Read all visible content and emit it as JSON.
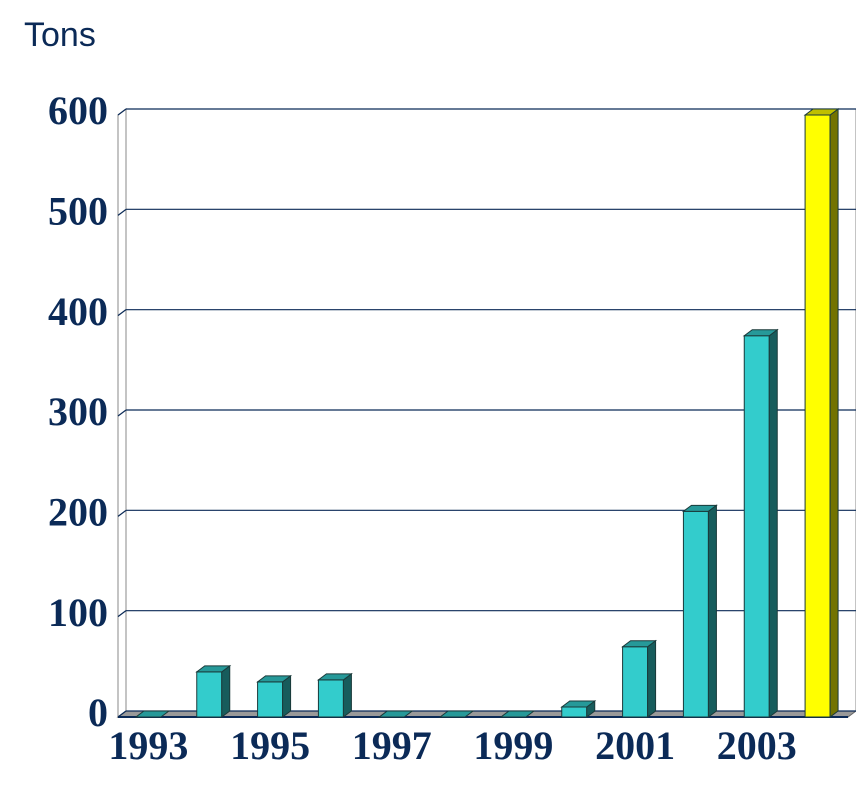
{
  "chart_data": {
    "type": "bar3d",
    "y_axis_label": "Tons",
    "categories": [
      "1993",
      null,
      "1995",
      null,
      "1997",
      null,
      "1999",
      null,
      "2001",
      null,
      "2003",
      null
    ],
    "values": [
      0,
      45,
      35,
      37,
      0,
      0,
      0,
      10,
      70,
      205,
      380,
      600
    ],
    "colors": [
      "#33cccc",
      "#33cccc",
      "#33cccc",
      "#33cccc",
      "#33cccc",
      "#33cccc",
      "#33cccc",
      "#33cccc",
      "#33cccc",
      "#33cccc",
      "#33cccc",
      "#ffff00"
    ],
    "ylim": [
      0,
      600
    ],
    "yticks": [
      0,
      100,
      200,
      300,
      400,
      500,
      600
    ],
    "grid": true
  }
}
